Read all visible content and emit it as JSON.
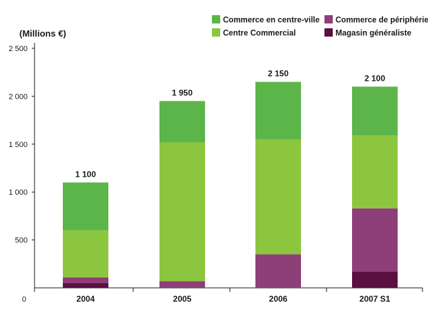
{
  "chart_data": {
    "type": "bar",
    "stacked": true,
    "ylabel": "(Millions €)",
    "ylim": [
      0,
      2500
    ],
    "y_ticks": [
      0,
      500,
      1000,
      1500,
      2000,
      2500
    ],
    "y_tick_labels": [
      "0",
      "500",
      "1 000",
      "1 500",
      "2 000",
      "2 500"
    ],
    "categories": [
      "2004",
      "2005",
      "2006",
      "2007 S1"
    ],
    "series": [
      {
        "name": "Magasin généraliste",
        "color": "#5a1040",
        "values": [
          50,
          0,
          0,
          170
        ]
      },
      {
        "name": "Commerce de périphérie",
        "color": "#8e3f78",
        "values": [
          60,
          70,
          350,
          660
        ]
      },
      {
        "name": "Centre Commercial",
        "color": "#8cc63e",
        "values": [
          490,
          1450,
          1200,
          760
        ]
      },
      {
        "name": "Commerce en centre-ville",
        "color": "#5cb548",
        "values": [
          500,
          430,
          600,
          510
        ]
      }
    ],
    "totals": [
      1100,
      1950,
      2150,
      2100
    ],
    "total_labels": [
      "1 100",
      "1 950",
      "2 150",
      "2 100"
    ],
    "legend": [
      {
        "name": "Commerce en centre-ville",
        "color": "#5cb548"
      },
      {
        "name": "Commerce de périphérie",
        "color": "#8e3f78"
      },
      {
        "name": "Centre Commercial",
        "color": "#8cc63e"
      },
      {
        "name": "Magasin généraliste",
        "color": "#5a1040"
      }
    ],
    "legend_position": "top-right",
    "grid": false
  }
}
